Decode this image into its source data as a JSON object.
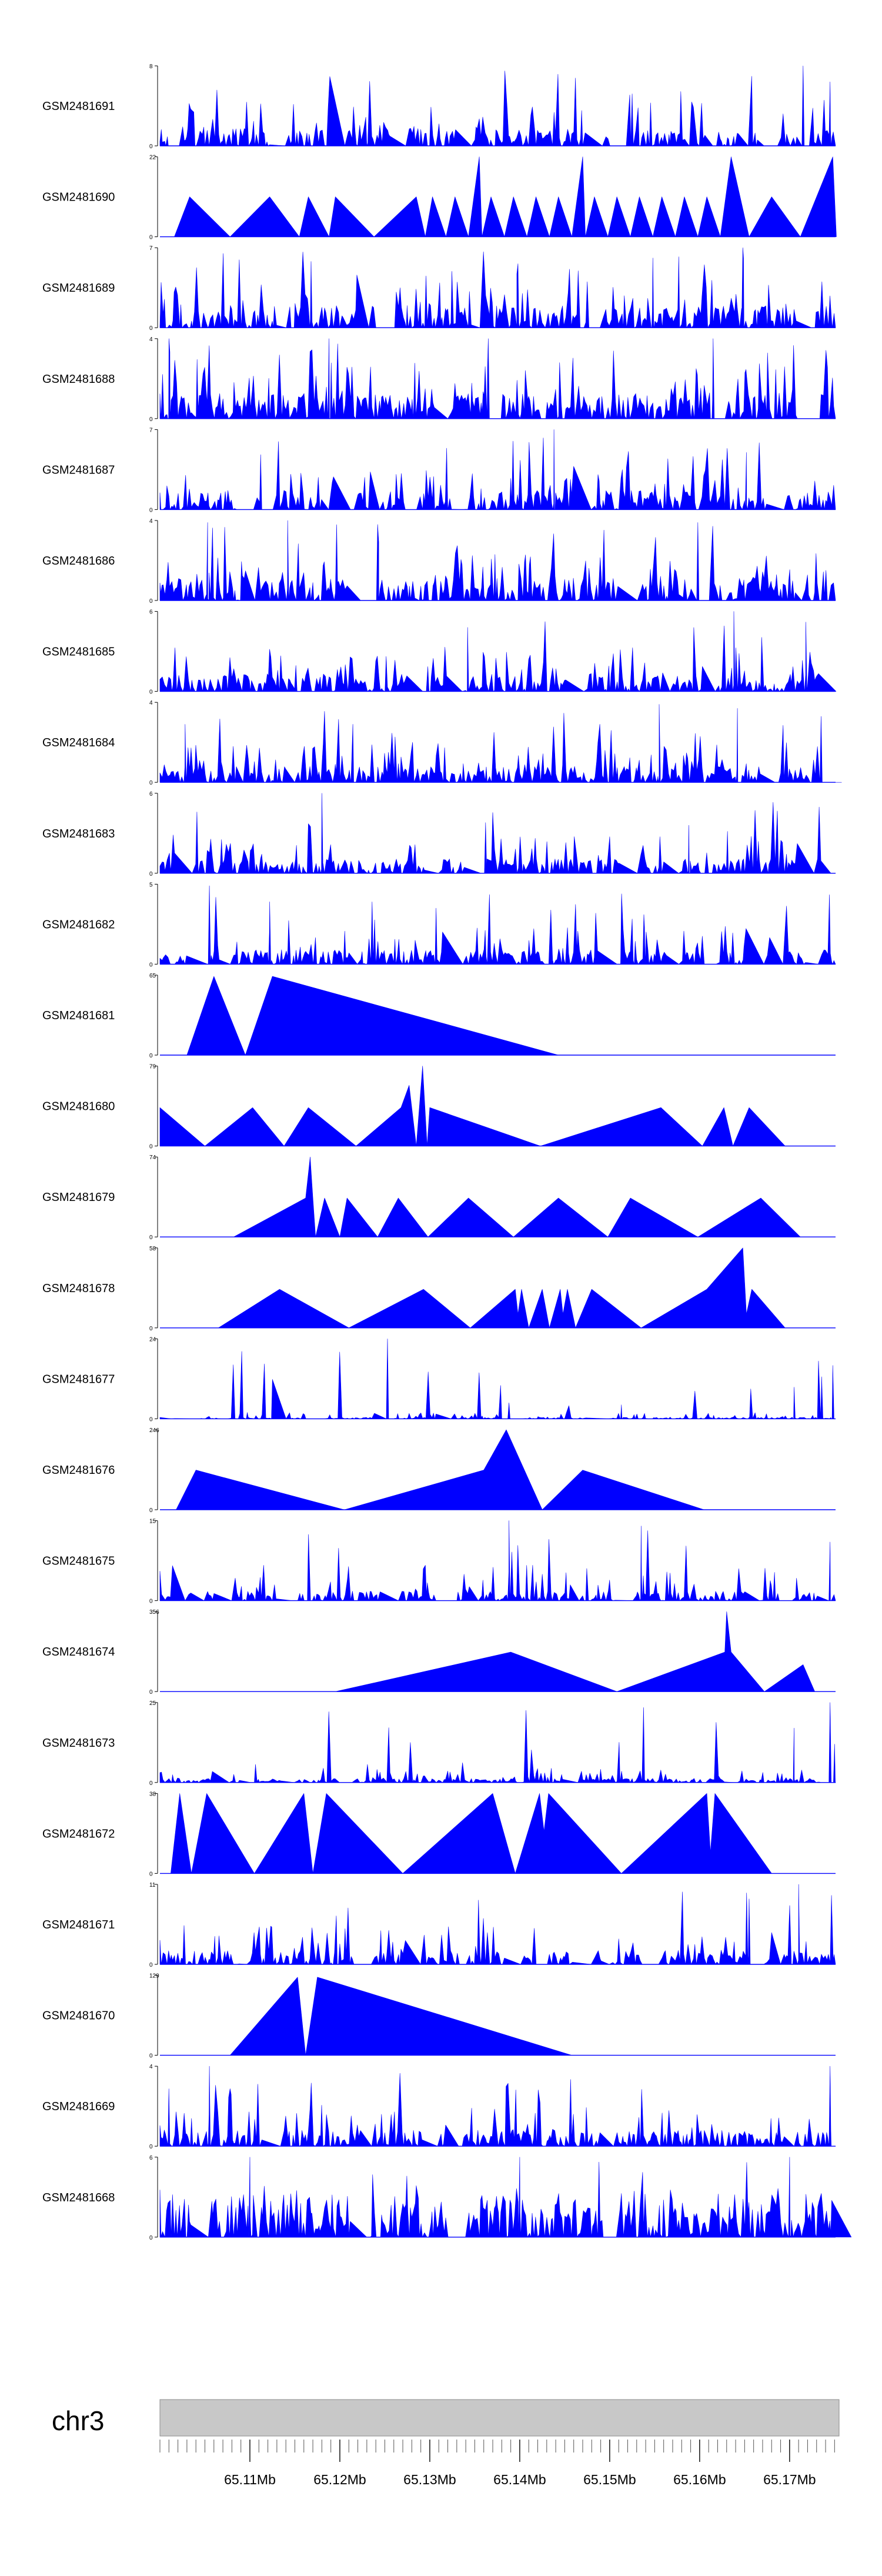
{
  "chart_data": {
    "type": "area",
    "chromosome": "chr3",
    "fill_color": "#0000ff",
    "ideogram_color": "#c8c8c8",
    "xlim": [
      65.1,
      65.1755
    ],
    "ticks": [
      "65.11Mb",
      "65.12Mb",
      "65.13Mb",
      "65.14Mb",
      "65.15Mb",
      "65.16Mb",
      "65.17Mb"
    ],
    "tick_values": [
      65.11,
      65.12,
      65.13,
      65.14,
      65.15,
      65.16,
      65.17
    ],
    "minor_tick_step": 0.001,
    "tracks": [
      {
        "name": "GSM2481691",
        "ymax": "8",
        "ymin": "0",
        "ymax_value": 8,
        "style": "dense",
        "seed": 11,
        "level": 0.22,
        "spike": 0.55,
        "peaks": [
          [
            65.1525,
            5.2
          ],
          [
            65.1715,
            8
          ],
          [
            65.1745,
            6.4
          ]
        ]
      },
      {
        "name": "GSM2481690",
        "ymax": "22",
        "ymin": "0",
        "ymax_value": 22,
        "style": "sparse",
        "seed": 12,
        "profile": [
          [
            65.1016,
            0
          ],
          [
            65.1033,
            11
          ],
          [
            65.1078,
            0
          ],
          [
            65.1122,
            11
          ],
          [
            65.1155,
            0
          ],
          [
            65.1165,
            11
          ],
          [
            65.1188,
            0
          ],
          [
            65.1195,
            11
          ],
          [
            65.1238,
            0
          ],
          [
            65.1285,
            11
          ],
          [
            65.1295,
            0
          ],
          [
            65.1303,
            11
          ],
          [
            65.1318,
            0
          ],
          [
            65.1328,
            11
          ],
          [
            65.1343,
            0
          ],
          [
            65.1355,
            22
          ],
          [
            65.1358,
            0
          ],
          [
            65.1368,
            11
          ],
          [
            65.1383,
            0
          ],
          [
            65.1393,
            11
          ],
          [
            65.1408,
            0
          ],
          [
            65.1418,
            11
          ],
          [
            65.1433,
            0
          ],
          [
            65.1443,
            11
          ],
          [
            65.1458,
            0
          ],
          [
            65.147,
            22
          ],
          [
            65.1473,
            0
          ],
          [
            65.1483,
            11
          ],
          [
            65.1498,
            0
          ],
          [
            65.1508,
            11
          ],
          [
            65.1523,
            0
          ],
          [
            65.1533,
            11
          ],
          [
            65.1548,
            0
          ],
          [
            65.1558,
            11
          ],
          [
            65.1573,
            0
          ],
          [
            65.1583,
            11
          ],
          [
            65.1598,
            0
          ],
          [
            65.1608,
            11
          ],
          [
            65.1623,
            0
          ],
          [
            65.1635,
            22
          ],
          [
            65.1655,
            0
          ],
          [
            65.168,
            11
          ],
          [
            65.1712,
            0
          ],
          [
            65.1748,
            22
          ],
          [
            65.1752,
            0
          ]
        ]
      },
      {
        "name": "GSM2481689",
        "ymax": "7",
        "ymin": "0",
        "ymax_value": 7,
        "style": "dense",
        "seed": 13,
        "level": 0.28,
        "spike": 0.6,
        "peaks": [
          [
            65.1168,
            5.8
          ],
          [
            65.1398,
            5.6
          ],
          [
            65.1548,
            6.1
          ],
          [
            65.1648,
            7
          ]
        ]
      },
      {
        "name": "GSM2481688",
        "ymax": "4",
        "ymin": "0",
        "ymax_value": 4,
        "style": "dense",
        "seed": 14,
        "level": 0.32,
        "spike": 0.65,
        "peaks": [
          [
            65.101,
            4
          ],
          [
            65.1188,
            4
          ],
          [
            65.1365,
            4
          ],
          [
            65.1615,
            4
          ]
        ]
      },
      {
        "name": "GSM2481687",
        "ymax": "7",
        "ymin": "0",
        "ymax_value": 7,
        "style": "dense",
        "seed": 15,
        "level": 0.24,
        "spike": 0.55,
        "peaks": [
          [
            65.1112,
            4.8
          ],
          [
            65.1438,
            7
          ],
          [
            65.1652,
            5
          ]
        ]
      },
      {
        "name": "GSM2481686",
        "ymax": "4",
        "ymin": "0",
        "ymax_value": 4,
        "style": "dense",
        "seed": 16,
        "level": 0.28,
        "spike": 0.6,
        "peaks": [
          [
            65.1053,
            3.9
          ],
          [
            65.1142,
            4
          ],
          [
            65.1242,
            3.8
          ],
          [
            65.1598,
            3.9
          ]
        ]
      },
      {
        "name": "GSM2481685",
        "ymax": "6",
        "ymin": "0",
        "ymax_value": 6,
        "style": "dense",
        "seed": 17,
        "level": 0.22,
        "spike": 0.55,
        "peaks": [
          [
            65.1342,
            4.8
          ],
          [
            65.1638,
            6
          ],
          [
            65.1718,
            5.2
          ]
        ]
      },
      {
        "name": "GSM2481684",
        "ymax": "4",
        "ymin": "0",
        "ymax_value": 4,
        "style": "dense",
        "seed": 18,
        "level": 0.2,
        "spike": 0.5,
        "peaks": [
          [
            65.1028,
            2.9
          ],
          [
            65.1555,
            3.9
          ],
          [
            65.1642,
            3.7
          ],
          [
            65.1735,
            3.3
          ]
        ]
      },
      {
        "name": "GSM2481683",
        "ymax": "6",
        "ymin": "0",
        "ymax_value": 6,
        "style": "dense",
        "seed": 19,
        "level": 0.18,
        "spike": 0.48,
        "peaks": [
          [
            65.118,
            6
          ],
          [
            65.1362,
            3.8
          ],
          [
            65.1588,
            3.6
          ]
        ]
      },
      {
        "name": "GSM2481682",
        "ymax": "5",
        "ymin": "0",
        "ymax_value": 5,
        "style": "dense",
        "seed": 20,
        "level": 0.18,
        "spike": 0.48,
        "peaks": [
          [
            65.1055,
            4.9
          ],
          [
            65.1122,
            3.9
          ],
          [
            65.1307,
            3.5
          ],
          [
            65.1538,
            3.1
          ]
        ]
      },
      {
        "name": "GSM2481681",
        "ymax": "65",
        "ymin": "0",
        "ymax_value": 65,
        "style": "sparse",
        "seed": 21,
        "profile": [
          [
            65.103,
            0
          ],
          [
            65.106,
            64
          ],
          [
            65.1095,
            0
          ],
          [
            65.1125,
            64
          ],
          [
            65.1443,
            0
          ]
        ]
      },
      {
        "name": "GSM2481680",
        "ymax": "79",
        "ymin": "0",
        "ymax_value": 79,
        "style": "sparse",
        "seed": 22,
        "profile": [
          [
            65.1,
            38
          ],
          [
            65.105,
            0
          ],
          [
            65.1103,
            38
          ],
          [
            65.1138,
            0
          ],
          [
            65.1165,
            38
          ],
          [
            65.1218,
            0
          ],
          [
            65.1268,
            38
          ],
          [
            65.1277,
            60
          ],
          [
            65.1285,
            0
          ],
          [
            65.1292,
            79
          ],
          [
            65.1297,
            0
          ],
          [
            65.13,
            38
          ],
          [
            65.1423,
            0
          ],
          [
            65.1557,
            38
          ],
          [
            65.1603,
            0
          ],
          [
            65.1627,
            38
          ],
          [
            65.1637,
            0
          ],
          [
            65.1655,
            38
          ],
          [
            65.1695,
            0
          ]
        ]
      },
      {
        "name": "GSM2481679",
        "ymax": "74",
        "ymin": "0",
        "ymax_value": 74,
        "style": "sparse",
        "seed": 23,
        "profile": [
          [
            65.1082,
            0
          ],
          [
            65.1162,
            36
          ],
          [
            65.1167,
            74
          ],
          [
            65.117,
            36
          ],
          [
            65.1173,
            0
          ],
          [
            65.1183,
            36
          ],
          [
            65.12,
            0
          ],
          [
            65.1208,
            36
          ],
          [
            65.1242,
            0
          ],
          [
            65.1265,
            36
          ],
          [
            65.1298,
            0
          ],
          [
            65.1343,
            36
          ],
          [
            65.1393,
            0
          ],
          [
            65.1443,
            36
          ],
          [
            65.1498,
            0
          ],
          [
            65.1523,
            36
          ],
          [
            65.1598,
            0
          ],
          [
            65.1668,
            36
          ],
          [
            65.1712,
            0
          ]
        ]
      },
      {
        "name": "GSM2481678",
        "ymax": "58",
        "ymin": "0",
        "ymax_value": 58,
        "style": "sparse",
        "seed": 24,
        "profile": [
          [
            65.1065,
            0
          ],
          [
            65.1133,
            28
          ],
          [
            65.121,
            0
          ],
          [
            65.1293,
            28
          ],
          [
            65.1345,
            0
          ],
          [
            65.1395,
            28
          ],
          [
            65.1398,
            10
          ],
          [
            65.1402,
            28
          ],
          [
            65.141,
            0
          ],
          [
            65.1425,
            28
          ],
          [
            65.1433,
            0
          ],
          [
            65.1445,
            28
          ],
          [
            65.1448,
            10
          ],
          [
            65.1453,
            28
          ],
          [
            65.1462,
            0
          ],
          [
            65.148,
            28
          ],
          [
            65.1535,
            0
          ],
          [
            65.1608,
            28
          ],
          [
            65.1648,
            58
          ],
          [
            65.1652,
            10
          ],
          [
            65.1658,
            28
          ],
          [
            65.1695,
            0
          ]
        ]
      },
      {
        "name": "GSM2481677",
        "ymax": "24",
        "ymin": "0",
        "ymax_value": 24,
        "style": "dense",
        "seed": 25,
        "level": 0.018,
        "spike": 0.08,
        "peaks": [
          [
            65.1253,
            24
          ],
          [
            65.1388,
            4.8
          ],
          [
            65.1513,
            4.2
          ],
          [
            65.1705,
            9.5
          ],
          [
            65.1748,
            16
          ]
        ]
      },
      {
        "name": "GSM2481676",
        "ymax": "246",
        "ymin": "0",
        "ymax_value": 246,
        "style": "sparse",
        "seed": 26,
        "profile": [
          [
            65.1018,
            0
          ],
          [
            65.104,
            122
          ],
          [
            65.1205,
            0
          ],
          [
            65.136,
            122
          ],
          [
            65.1385,
            246
          ],
          [
            65.1425,
            0
          ],
          [
            65.147,
            122
          ],
          [
            65.1605,
            0
          ]
        ]
      },
      {
        "name": "GSM2481675",
        "ymax": "15",
        "ymin": "0",
        "ymax_value": 15,
        "style": "dense",
        "seed": 27,
        "level": 0.12,
        "spike": 0.45,
        "peaks": [
          [
            65.1388,
            15
          ],
          [
            65.1535,
            14
          ],
          [
            65.1745,
            11
          ]
        ]
      },
      {
        "name": "GSM2481674",
        "ymax": "356",
        "ymin": "0",
        "ymax_value": 356,
        "style": "sparse",
        "seed": 28,
        "profile": [
          [
            65.1195,
            0
          ],
          [
            65.139,
            176
          ],
          [
            65.1508,
            0
          ],
          [
            65.1628,
            176
          ],
          [
            65.163,
            356
          ],
          [
            65.1635,
            176
          ],
          [
            65.1672,
            0
          ],
          [
            65.1715,
            120
          ],
          [
            65.1728,
            0
          ]
        ]
      },
      {
        "name": "GSM2481673",
        "ymax": "25",
        "ymin": "0",
        "ymax_value": 25,
        "style": "dense",
        "seed": 29,
        "level": 0.05,
        "spike": 0.18,
        "peaks": [
          [
            65.1705,
            17
          ],
          [
            65.1745,
            25
          ],
          [
            65.175,
            12
          ]
        ]
      },
      {
        "name": "GSM2481672",
        "ymax": "38",
        "ymin": "0",
        "ymax_value": 38,
        "style": "sparse",
        "seed": 30,
        "profile": [
          [
            65.1012,
            0
          ],
          [
            65.1022,
            38
          ],
          [
            65.1035,
            0
          ],
          [
            65.1052,
            38
          ],
          [
            65.1105,
            0
          ],
          [
            65.116,
            38
          ],
          [
            65.117,
            0
          ],
          [
            65.1185,
            38
          ],
          [
            65.127,
            0
          ],
          [
            65.137,
            38
          ],
          [
            65.1395,
            0
          ],
          [
            65.1422,
            38
          ],
          [
            65.1427,
            20
          ],
          [
            65.1432,
            38
          ],
          [
            65.1513,
            0
          ],
          [
            65.1608,
            38
          ],
          [
            65.1612,
            10
          ],
          [
            65.1617,
            38
          ],
          [
            65.168,
            0
          ]
        ]
      },
      {
        "name": "GSM2481671",
        "ymax": "11",
        "ymin": "0",
        "ymax_value": 11,
        "style": "dense",
        "seed": 31,
        "level": 0.18,
        "spike": 0.5,
        "peaks": [
          [
            65.171,
            11
          ],
          [
            65.1655,
            9
          ]
        ]
      },
      {
        "name": "GSM2481670",
        "ymax": "129",
        "ymin": "0",
        "ymax_value": 129,
        "style": "sparse",
        "seed": 32,
        "profile": [
          [
            65.1078,
            0
          ],
          [
            65.1153,
            126
          ],
          [
            65.1162,
            0
          ],
          [
            65.1175,
            126
          ],
          [
            65.1458,
            0
          ]
        ]
      },
      {
        "name": "GSM2481669",
        "ymax": "4",
        "ymin": "0",
        "ymax_value": 4,
        "style": "dense",
        "seed": 33,
        "level": 0.2,
        "spike": 0.5,
        "peaks": [
          [
            65.1055,
            4
          ],
          [
            65.1745,
            4
          ]
        ]
      },
      {
        "name": "GSM2481668",
        "ymax": "6",
        "ymin": "0",
        "ymax_value": 6,
        "style": "dense",
        "seed": 34,
        "level": 0.42,
        "spike": 0.55,
        "peaks": [
          [
            65.11,
            6
          ],
          [
            65.14,
            6
          ],
          [
            65.17,
            6
          ]
        ]
      }
    ]
  }
}
